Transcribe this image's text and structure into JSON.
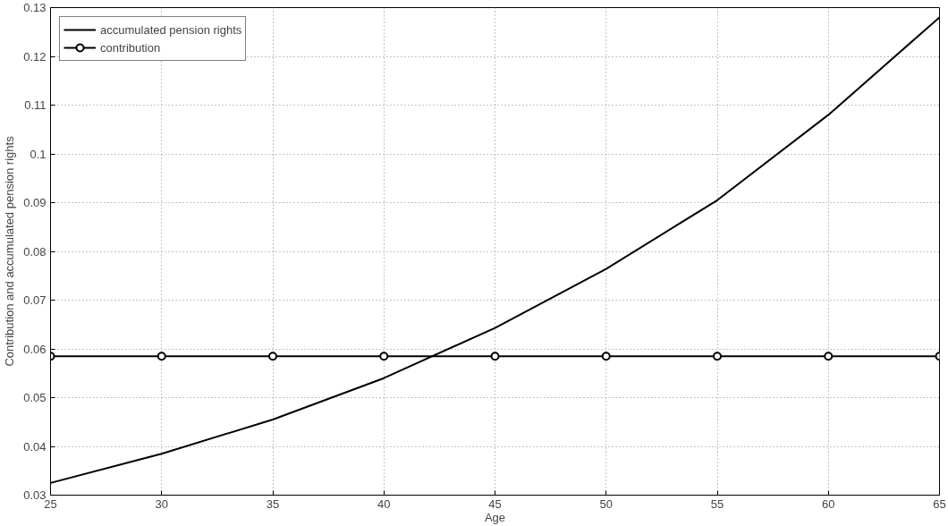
{
  "chart_data": {
    "type": "line",
    "xlabel": "Age",
    "ylabel": "Contribution and accumulated pension rights",
    "x": [
      25,
      30,
      35,
      40,
      45,
      50,
      55,
      60,
      65
    ],
    "series": [
      {
        "name": "accumulated pension rights",
        "color": "#000000",
        "marker": "none",
        "values": [
          0.0325,
          0.0385,
          0.0455,
          0.054,
          0.0643,
          0.0764,
          0.0905,
          0.108,
          0.128
        ]
      },
      {
        "name": "contribution",
        "color": "#000000",
        "marker": "circle",
        "values": [
          0.0585,
          0.0585,
          0.0585,
          0.0585,
          0.0585,
          0.0585,
          0.0585,
          0.0585,
          0.0585
        ]
      }
    ],
    "xlim": [
      25,
      65
    ],
    "xticks": [
      25,
      30,
      35,
      40,
      45,
      50,
      55,
      60,
      65
    ],
    "ylim": [
      0.03,
      0.13
    ],
    "yticks": [
      0.03,
      0.04,
      0.05,
      0.06,
      0.07,
      0.08,
      0.09,
      0.1,
      0.11,
      0.12,
      0.13
    ],
    "grid": true,
    "legend": "top left",
    "line_style": "solid"
  }
}
